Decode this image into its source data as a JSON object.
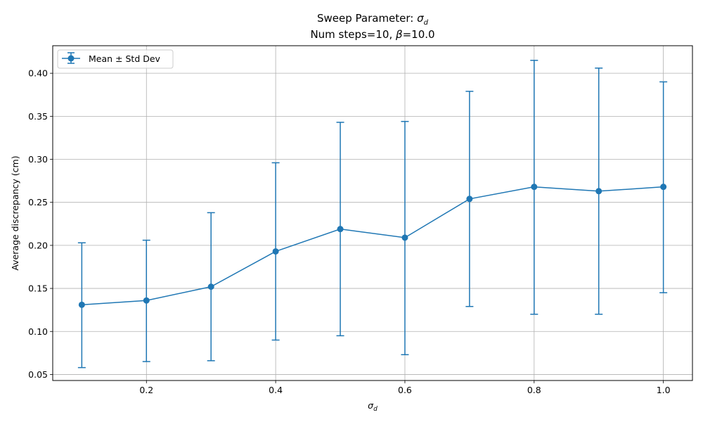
{
  "chart_data": {
    "type": "line",
    "title_main": "Sweep Parameter: ",
    "title_symbol": "σ",
    "title_symbol_sub": "d",
    "subtitle_prefix": "Num steps=10, ",
    "subtitle_symbol": "β",
    "subtitle_suffix": "=10.0",
    "xlabel_symbol": "σ",
    "xlabel_sub": "d",
    "ylabel": "Average discrepancy (cm)",
    "xlim": [
      0.055,
      1.045
    ],
    "ylim": [
      0.043,
      0.432
    ],
    "xticks": [
      0.2,
      0.4,
      0.6,
      0.8,
      1.0
    ],
    "xtick_labels": [
      "0.2",
      "0.4",
      "0.6",
      "0.8",
      "1.0"
    ],
    "yticks": [
      0.05,
      0.1,
      0.15,
      0.2,
      0.25,
      0.3,
      0.35,
      0.4
    ],
    "ytick_labels": [
      "0.05",
      "0.10",
      "0.15",
      "0.20",
      "0.25",
      "0.30",
      "0.35",
      "0.40"
    ],
    "grid": true,
    "legend_position": "top-left",
    "color": "#1f77b4",
    "series": [
      {
        "name": "Mean ± Std Dev",
        "x": [
          0.1,
          0.2,
          0.3,
          0.4,
          0.5,
          0.6,
          0.7,
          0.8,
          0.9,
          1.0
        ],
        "y": [
          0.131,
          0.136,
          0.152,
          0.193,
          0.219,
          0.209,
          0.254,
          0.268,
          0.263,
          0.268
        ],
        "err_low": [
          0.058,
          0.065,
          0.066,
          0.09,
          0.095,
          0.073,
          0.129,
          0.12,
          0.12,
          0.145
        ],
        "err_high": [
          0.203,
          0.206,
          0.238,
          0.296,
          0.343,
          0.344,
          0.379,
          0.415,
          0.406,
          0.39
        ]
      }
    ]
  }
}
